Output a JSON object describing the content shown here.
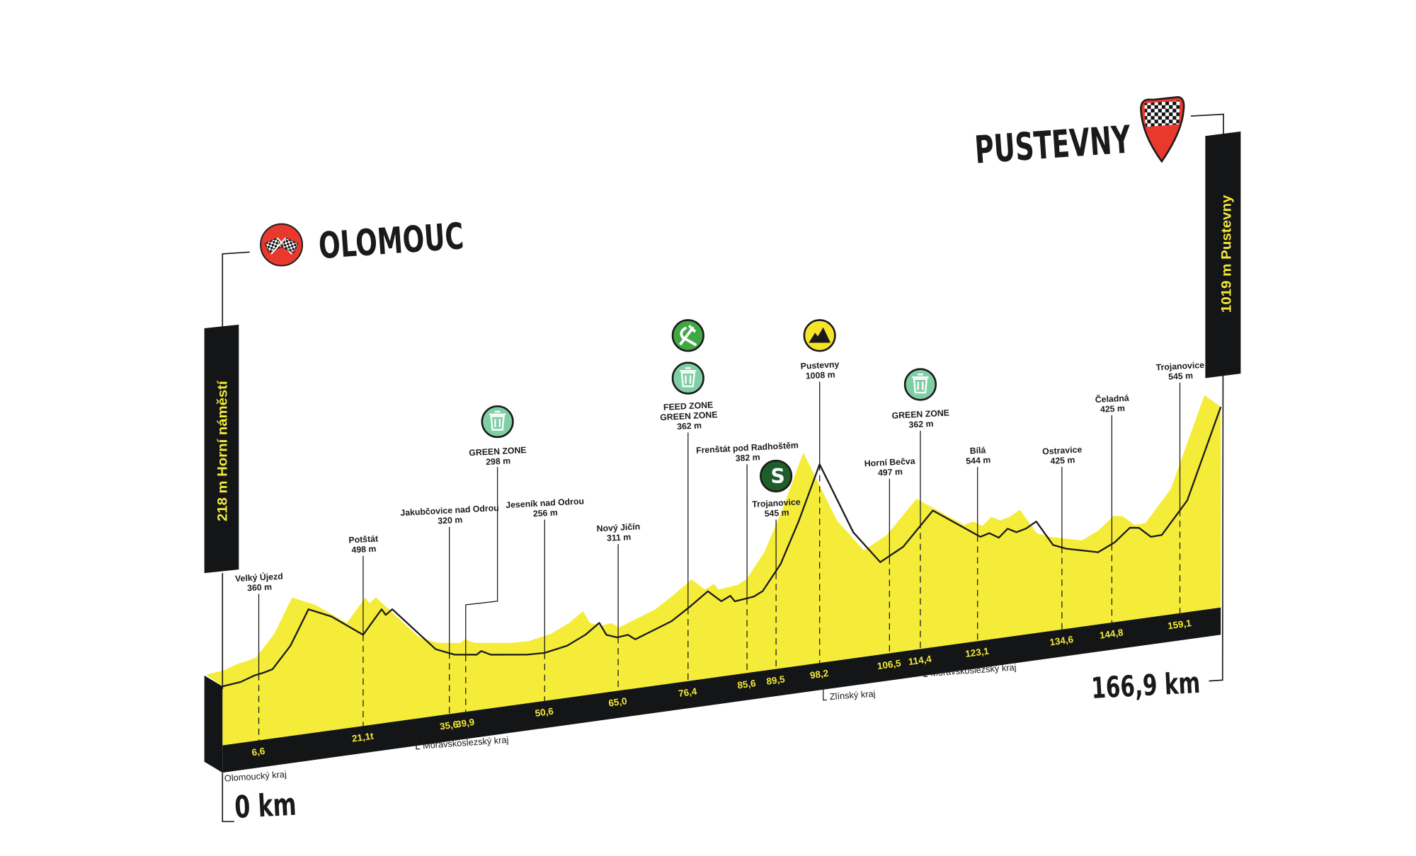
{
  "colors": {
    "profile_fill": "#f5ec3a",
    "band": "#141516",
    "line": "#1a1a1a",
    "km_text": "#f2e93a",
    "green_zone": "#7fcfa5",
    "feed_zone": "#3fa845",
    "sprint": "#1f5e2b",
    "mountain": "#f5e42a",
    "start_red": "#e8392c"
  },
  "start": {
    "city": "OLOMOUC",
    "altitude_label": "218 m Horní náměstí",
    "distance": "0 km",
    "icon": "start-flags-icon"
  },
  "finish": {
    "city": "PUSTEVNY",
    "altitude_label": "1019 m Pustevny",
    "distance": "166,9 km",
    "icon": "finish-pin-checkered-icon"
  },
  "chart_data": {
    "type": "area",
    "xlabel": "",
    "ylabel": "",
    "x_unit": "km",
    "y_unit": "m",
    "xlim": [
      0,
      166.9
    ],
    "grid": false,
    "profile": [
      [
        0,
        218
      ],
      [
        3.3,
        229
      ],
      [
        5.8,
        255
      ],
      [
        7.2,
        263
      ],
      [
        8.5,
        276
      ],
      [
        11.0,
        395
      ],
      [
        13.5,
        587
      ],
      [
        16.7,
        528
      ],
      [
        21.1,
        400
      ],
      [
        24.2,
        530
      ],
      [
        24.9,
        495
      ],
      [
        26.0,
        522
      ],
      [
        33.3,
        262
      ],
      [
        36.9,
        217
      ],
      [
        41.4,
        199
      ],
      [
        42.0,
        216
      ],
      [
        43.3,
        188
      ],
      [
        48.2,
        160
      ],
      [
        50.6,
        156
      ],
      [
        55.0,
        179
      ],
      [
        58.6,
        227
      ],
      [
        61.3,
        283
      ],
      [
        62.7,
        210
      ],
      [
        64.8,
        187
      ],
      [
        66.6,
        193
      ],
      [
        67.8,
        162
      ],
      [
        73.7,
        236
      ],
      [
        76.7,
        304
      ],
      [
        79.5,
        377
      ],
      [
        81.6,
        310
      ],
      [
        83.0,
        334
      ],
      [
        83.7,
        299
      ],
      [
        86.5,
        311
      ],
      [
        87.7,
        335
      ],
      [
        90.4,
        474
      ],
      [
        94.0,
        701
      ],
      [
        98.2,
        1008
      ],
      [
        102.2,
        597
      ],
      [
        105.4,
        407
      ],
      [
        110.0,
        476
      ],
      [
        116.3,
        658
      ],
      [
        123.5,
        472
      ],
      [
        124.7,
        486
      ],
      [
        126.0,
        453
      ],
      [
        127.2,
        497
      ],
      [
        128.4,
        470
      ],
      [
        129.7,
        483
      ],
      [
        131.1,
        515
      ],
      [
        133.4,
        369
      ],
      [
        135.5,
        338
      ],
      [
        142.0,
        293
      ],
      [
        145.4,
        336
      ],
      [
        148.6,
        407
      ],
      [
        150.5,
        399
      ],
      [
        153.0,
        339
      ],
      [
        155.3,
        341
      ],
      [
        160.5,
        516
      ],
      [
        166.9,
        1019
      ]
    ],
    "km_ticks": [
      "6,6",
      "21,1t",
      "35,6",
      "39,9",
      "50,6",
      "65,0",
      "76,4",
      "85,6",
      "89,5",
      "98,2",
      "106,5",
      "114,4",
      "123,1",
      "134,6",
      "144,8",
      "159,1"
    ],
    "km_tick_values": [
      6.6,
      21.1,
      35.6,
      39.9,
      50.6,
      65.0,
      76.4,
      85.6,
      89.5,
      98.2,
      106.5,
      114.4,
      123.1,
      134.6,
      144.8,
      159.1
    ],
    "markers": [
      {
        "km": 6.6,
        "lines": [
          "Velký Újezd",
          "360 m"
        ],
        "icons": []
      },
      {
        "km": 21.1,
        "lines": [
          "Potštát",
          "498 m"
        ],
        "icons": []
      },
      {
        "km": 35.6,
        "lines": [
          "Jakubčovice nad Odrou",
          "320 m"
        ],
        "icons": []
      },
      {
        "km": 39.9,
        "lines": [
          "GREEN ZONE",
          "298 m"
        ],
        "icons": [
          "green-zone"
        ]
      },
      {
        "km": 50.6,
        "lines": [
          "Jeseník nad Odrou",
          "256 m"
        ],
        "icons": []
      },
      {
        "km": 65.0,
        "lines": [
          "Nový Jičín",
          "311 m"
        ],
        "icons": []
      },
      {
        "km": 76.4,
        "lines": [
          "FEED ZONE",
          "GREEN ZONE",
          "362 m"
        ],
        "icons": [
          "feed-zone",
          "green-zone"
        ]
      },
      {
        "km": 85.6,
        "lines": [
          "Frenštát pod Radhoštěm",
          "382 m"
        ],
        "icons": []
      },
      {
        "km": 89.5,
        "lines": [
          "Trojanovice",
          "545 m"
        ],
        "icons": [
          "sprint"
        ]
      },
      {
        "km": 98.2,
        "lines": [
          "Pustevny",
          "1008 m"
        ],
        "icons": [
          "mountain"
        ]
      },
      {
        "km": 106.5,
        "lines": [
          "Horní Bečva",
          "497 m"
        ],
        "icons": []
      },
      {
        "km": 114.4,
        "lines": [
          "GREEN ZONE",
          "362 m"
        ],
        "icons": [
          "green-zone"
        ]
      },
      {
        "km": 123.1,
        "lines": [
          "Bílá",
          "544 m"
        ],
        "icons": []
      },
      {
        "km": 134.6,
        "lines": [
          "Ostravice",
          "425 m"
        ],
        "icons": []
      },
      {
        "km": 144.8,
        "lines": [
          "Čeladná",
          "425 m"
        ],
        "icons": []
      },
      {
        "km": 159.1,
        "lines": [
          "Trojanovice",
          "545 m"
        ],
        "icons": []
      }
    ],
    "regions": [
      {
        "name": "Olomoucký kraj",
        "km": 0
      },
      {
        "name": "Moravskoslezský kraj",
        "km": 30.5
      },
      {
        "name": "Zlínský kraj",
        "km": 98.2
      },
      {
        "name": "Moravskoslezský kraj",
        "km": 114.4
      }
    ]
  }
}
